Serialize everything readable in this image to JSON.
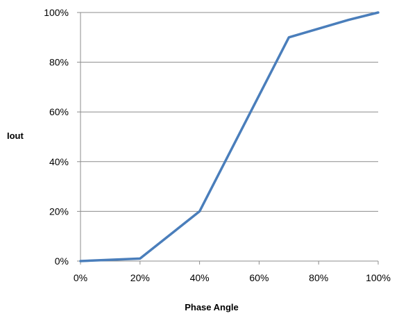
{
  "chart_data": {
    "type": "line",
    "xlabel": "Phase Angle",
    "ylabel": "Iout",
    "x_ticks": [
      "0%",
      "20%",
      "40%",
      "60%",
      "80%",
      "100%"
    ],
    "y_ticks": [
      "0%",
      "20%",
      "40%",
      "60%",
      "80%",
      "100%"
    ],
    "xlim": [
      0,
      100
    ],
    "ylim": [
      0,
      100
    ],
    "grid": "horizontal",
    "legend": "none",
    "series": [
      {
        "color": "#4a7ebb",
        "x": [
          0,
          20,
          40,
          70,
          90,
          100
        ],
        "y": [
          0,
          1,
          20,
          90,
          97,
          100
        ]
      }
    ]
  }
}
